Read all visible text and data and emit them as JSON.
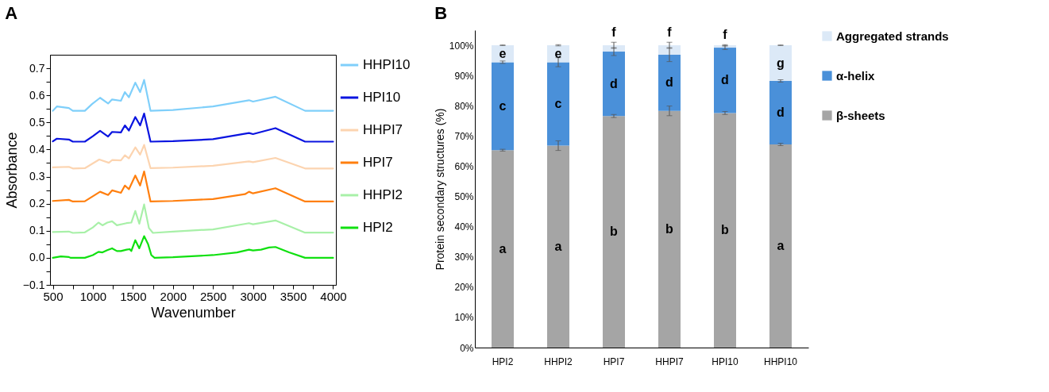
{
  "chart_data": [
    {
      "type": "line",
      "title": "A",
      "xlabel": "Wavenumber",
      "ylabel": "Absorbance",
      "xlim": [
        465,
        4035
      ],
      "xticks": [
        500,
        {
          "value": 750,
          "label": null
        },
        1000,
        {
          "value": 1250,
          "label": null
        },
        1500,
        {
          "value": 1750,
          "label": null
        },
        2000,
        {
          "value": 2250,
          "label": null
        },
        2500,
        {
          "value": 2750,
          "label": null
        },
        3000,
        {
          "value": 3250,
          "label": null
        },
        3500,
        {
          "value": 3750,
          "label": null
        },
        4000
      ],
      "ylim": [
        -0.1,
        0.75
      ],
      "yticks": [
        {
          "value": -0.1,
          "label": "−0.1"
        },
        {
          "value": -0.05,
          "label": null
        },
        {
          "value": 0,
          "label": "0.0"
        },
        {
          "value": 0.05,
          "label": null
        },
        0.1,
        {
          "value": 0.15,
          "label": null
        },
        0.2,
        {
          "value": 0.25,
          "label": null
        },
        0.3,
        {
          "value": 0.35,
          "label": null
        },
        0.4,
        {
          "value": 0.45,
          "label": null
        },
        0.5,
        {
          "value": 0.55,
          "label": null
        },
        0.6,
        {
          "value": 0.65,
          "label": null
        },
        0.7
      ],
      "legend": "right",
      "series": [
        {
          "name": "HHPI10",
          "color": "#7fcffa",
          "x": [
            500,
            550,
            700,
            750,
            900,
            990,
            1090,
            1190,
            1240,
            1350,
            1400,
            1450,
            1530,
            1590,
            1640,
            1720,
            2000,
            2500,
            2950,
            3000,
            3280,
            3650,
            4000
          ],
          "values": [
            0.543,
            0.559,
            0.553,
            0.543,
            0.543,
            0.568,
            0.591,
            0.57,
            0.585,
            0.58,
            0.612,
            0.593,
            0.647,
            0.612,
            0.657,
            0.543,
            0.546,
            0.559,
            0.582,
            0.577,
            0.595,
            0.543,
            0.543
          ]
        },
        {
          "name": "HPI10",
          "color": "#0a14e0",
          "x": [
            500,
            550,
            700,
            750,
            900,
            1000,
            1090,
            1190,
            1240,
            1350,
            1400,
            1450,
            1530,
            1590,
            1640,
            1720,
            2000,
            2500,
            2950,
            3000,
            3280,
            3650,
            4000
          ],
          "values": [
            0.43,
            0.44,
            0.437,
            0.429,
            0.429,
            0.449,
            0.469,
            0.448,
            0.465,
            0.463,
            0.489,
            0.47,
            0.52,
            0.489,
            0.533,
            0.429,
            0.431,
            0.438,
            0.461,
            0.457,
            0.479,
            0.429,
            0.429
          ]
        },
        {
          "name": "HHPI7",
          "color": "#fcd4b0",
          "x": [
            500,
            700,
            750,
            900,
            1080,
            1200,
            1240,
            1350,
            1400,
            1450,
            1530,
            1590,
            1640,
            1720,
            2000,
            2500,
            2950,
            3000,
            3280,
            3650,
            4000
          ],
          "values": [
            0.334,
            0.336,
            0.33,
            0.331,
            0.363,
            0.351,
            0.361,
            0.36,
            0.379,
            0.367,
            0.408,
            0.381,
            0.417,
            0.331,
            0.333,
            0.34,
            0.356,
            0.353,
            0.369,
            0.33,
            0.33
          ]
        },
        {
          "name": "HPI7",
          "color": "#ff7f0e",
          "x": [
            500,
            700,
            750,
            900,
            1090,
            1190,
            1240,
            1350,
            1400,
            1450,
            1530,
            1590,
            1640,
            1720,
            2000,
            2500,
            2900,
            2950,
            3000,
            3280,
            3650,
            4000
          ],
          "values": [
            0.21,
            0.214,
            0.208,
            0.209,
            0.244,
            0.232,
            0.249,
            0.24,
            0.267,
            0.253,
            0.304,
            0.267,
            0.319,
            0.208,
            0.21,
            0.217,
            0.235,
            0.244,
            0.238,
            0.257,
            0.208,
            0.208
          ]
        },
        {
          "name": "HHPI2",
          "color": "#a8f0a8",
          "x": [
            500,
            700,
            750,
            900,
            1000,
            1070,
            1120,
            1180,
            1240,
            1300,
            1420,
            1480,
            1530,
            1580,
            1640,
            1700,
            1750,
            2000,
            2500,
            2950,
            3000,
            3280,
            3650,
            4000
          ],
          "values": [
            0.095,
            0.097,
            0.092,
            0.094,
            0.112,
            0.13,
            0.12,
            0.13,
            0.135,
            0.12,
            0.128,
            0.13,
            0.173,
            0.126,
            0.197,
            0.11,
            0.092,
            0.097,
            0.105,
            0.128,
            0.124,
            0.138,
            0.093,
            0.093
          ]
        },
        {
          "name": "HPI2",
          "color": "#10e010",
          "x": [
            500,
            600,
            700,
            720,
            900,
            1000,
            1070,
            1120,
            1180,
            1240,
            1300,
            1350,
            1420,
            1460,
            1480,
            1530,
            1580,
            1640,
            1690,
            1730,
            1770,
            2000,
            2500,
            2800,
            2950,
            3000,
            3100,
            3200,
            3280,
            3450,
            3650,
            4000
          ],
          "values": [
            0.0,
            0.005,
            0.003,
            0.0,
            0.0,
            0.01,
            0.022,
            0.02,
            0.028,
            0.035,
            0.025,
            0.025,
            0.03,
            0.032,
            0.025,
            0.065,
            0.035,
            0.08,
            0.05,
            0.01,
            0.0,
            0.002,
            0.01,
            0.02,
            0.03,
            0.027,
            0.03,
            0.038,
            0.04,
            0.02,
            0.0,
            0.0
          ]
        }
      ]
    },
    {
      "type": "bar",
      "stacked": true,
      "title": "B",
      "ylabel": "Protein secondary structures (%)",
      "categories": [
        "HPI2",
        "HHPI2",
        "HPI7",
        "HHPI7",
        "HPI10",
        "HHPI10"
      ],
      "ylim": [
        0,
        105
      ],
      "yticks": [
        {
          "value": 0,
          "label": "0%"
        },
        {
          "value": 10,
          "label": "10%"
        },
        {
          "value": 20,
          "label": "20%"
        },
        {
          "value": 30,
          "label": "30%"
        },
        {
          "value": 40,
          "label": "40%"
        },
        {
          "value": 50,
          "label": "50%"
        },
        {
          "value": 60,
          "label": "60%"
        },
        {
          "value": 70,
          "label": "70%"
        },
        {
          "value": 80,
          "label": "80%"
        },
        {
          "value": 90,
          "label": "90%"
        },
        {
          "value": 100,
          "label": "100%"
        }
      ],
      "legend": "right",
      "series": [
        {
          "name": "β-sheets",
          "color": "#a5a5a5",
          "values": [
            65.3,
            66.8,
            76.6,
            78.3,
            77.6,
            67.2
          ],
          "errors": [
            0.3,
            1.6,
            0.5,
            1.6,
            0.5,
            0.4
          ],
          "value_labels": [
            "a",
            "a",
            "b",
            "b",
            "b",
            "a"
          ]
        },
        {
          "name": "α-helix",
          "color": "#4a90d9",
          "values": [
            29.1,
            27.6,
            21.3,
            18.6,
            21.6,
            21.0
          ],
          "errors": [
            0.4,
            1.5,
            1.3,
            2.3,
            0.6,
            0.4
          ],
          "value_labels": [
            "c",
            "c",
            "d",
            "d",
            "d",
            "d"
          ]
        },
        {
          "name": "Aggregated strands",
          "color": "#dce9f7",
          "values": [
            5.6,
            5.6,
            2.1,
            3.1,
            0.8,
            11.8
          ],
          "errors": [
            0.1,
            0.2,
            1.0,
            1.0,
            0.2,
            0.1
          ],
          "value_labels": [
            "e",
            "e",
            null,
            null,
            null,
            "g"
          ]
        }
      ],
      "totals": [
        null,
        null,
        "f",
        "f",
        "f",
        null
      ]
    }
  ]
}
